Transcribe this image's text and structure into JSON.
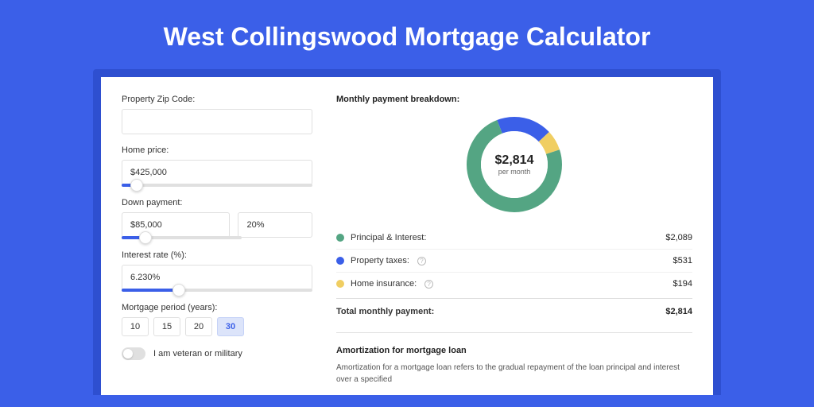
{
  "title": "West Collingswood Mortgage Calculator",
  "colors": {
    "page_bg": "#3B5FE8",
    "panel_wrap_bg": "#2E4FD0",
    "accent": "#3B5FE8",
    "pi": "#54A583",
    "tax": "#3B5FE8",
    "ins": "#F0CE62"
  },
  "form": {
    "zip": {
      "label": "Property Zip Code:",
      "value": ""
    },
    "home_price": {
      "label": "Home price:",
      "value": "$425,000",
      "slider_pct": 8
    },
    "down_payment": {
      "label": "Down payment:",
      "value": "$85,000",
      "pct": "20%",
      "slider_pct": 20
    },
    "interest": {
      "label": "Interest rate (%):",
      "value": "6.230%",
      "slider_pct": 30
    },
    "period": {
      "label": "Mortgage period (years):",
      "options": [
        "10",
        "15",
        "20",
        "30"
      ],
      "selected": "30"
    },
    "veteran": {
      "label": "I am veteran or military",
      "checked": false
    }
  },
  "breakdown": {
    "heading": "Monthly payment breakdown:",
    "donut": {
      "type": "donut",
      "center_value": "$2,814",
      "center_sub": "per month",
      "slices": [
        {
          "name": "pi",
          "value": 2089,
          "color": "#54A583"
        },
        {
          "name": "tax",
          "value": 531,
          "color": "#3B5FE8"
        },
        {
          "name": "ins",
          "value": 194,
          "color": "#F0CE62"
        }
      ],
      "size": 120,
      "thickness": 18
    },
    "items": [
      {
        "label": "Principal & Interest:",
        "value": "$2,089",
        "color": "#54A583",
        "info": false
      },
      {
        "label": "Property taxes:",
        "value": "$531",
        "color": "#3B5FE8",
        "info": true
      },
      {
        "label": "Home insurance:",
        "value": "$194",
        "color": "#F0CE62",
        "info": true
      }
    ],
    "total_label": "Total monthly payment:",
    "total_value": "$2,814"
  },
  "amort": {
    "heading": "Amortization for mortgage loan",
    "desc": "Amortization for a mortgage loan refers to the gradual repayment of the loan principal and interest over a specified"
  }
}
